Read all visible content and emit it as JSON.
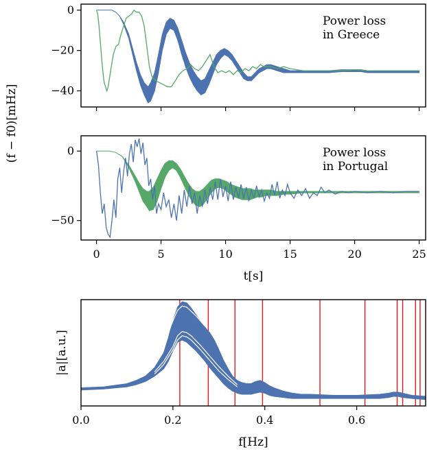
{
  "chart_data": [
    {
      "type": "line",
      "panel": "top",
      "annotation": [
        "Power loss",
        "in Greece"
      ],
      "ylabel": "(f − f0)[mHz]",
      "xlim": [
        -1.2,
        25.5
      ],
      "ylim": [
        -48,
        3
      ],
      "yticks": [
        0,
        -20,
        -40
      ],
      "ytick_labels": [
        "0",
        "−20",
        "−40"
      ],
      "xticks": [
        0,
        5,
        10,
        15,
        20,
        25
      ],
      "colors": {
        "band": "#4c72b0",
        "single": "#55a868"
      },
      "band": {
        "x": [
          0,
          0.5,
          1,
          1.2,
          1.5,
          1.8,
          2.1,
          2.5,
          2.8,
          3.1,
          3.4,
          3.7,
          4.0,
          4.2,
          4.5,
          4.8,
          5.1,
          5.4,
          5.7,
          6.0,
          6.3,
          6.6,
          6.9,
          7.2,
          7.5,
          7.8,
          8.1,
          8.4,
          8.7,
          9.0,
          9.3,
          9.6,
          9.9,
          10.2,
          10.5,
          10.8,
          11.1,
          11.4,
          11.7,
          12.0,
          12.3,
          12.6,
          12.9,
          13.2,
          13.5,
          14.0,
          14.5,
          15.0,
          15.5,
          16.0,
          16.5,
          17.0,
          18.0,
          19.0,
          20.0,
          20.5,
          21.0,
          22.0,
          23.0,
          24.0,
          25.0
        ],
        "upper": [
          0,
          0,
          0,
          0,
          -1,
          -3,
          -6,
          -12,
          -19,
          -26,
          -32,
          -36,
          -38,
          -36,
          -31,
          -22,
          -12,
          -6,
          -4,
          -5,
          -9,
          -15,
          -21,
          -26,
          -30,
          -33,
          -35,
          -34,
          -30,
          -26,
          -22,
          -20,
          -19,
          -20,
          -22,
          -25,
          -28,
          -31,
          -33,
          -33,
          -31,
          -29,
          -28,
          -27,
          -27,
          -28,
          -29,
          -30,
          -30,
          -30,
          -30,
          -30,
          -30,
          -29.5,
          -29.5,
          -29.5,
          -30,
          -30,
          -30,
          -30,
          -30
        ],
        "lower": [
          0,
          0,
          0,
          0,
          -1,
          -3,
          -7,
          -14,
          -22,
          -30,
          -37,
          -42,
          -46,
          -45,
          -40,
          -31,
          -20,
          -12,
          -9,
          -10,
          -15,
          -22,
          -28,
          -33,
          -37,
          -40,
          -42,
          -41,
          -37,
          -32,
          -27,
          -24,
          -22,
          -23,
          -25,
          -28,
          -31,
          -34,
          -35,
          -35,
          -33,
          -31,
          -30,
          -29,
          -29,
          -30,
          -31,
          -31,
          -31,
          -31,
          -31,
          -31,
          -31,
          -30.5,
          -30.5,
          -30.5,
          -31,
          -31,
          -31,
          -31,
          -31
        ]
      },
      "single": {
        "x": [
          0,
          0.1,
          0.2,
          0.3,
          0.4,
          0.5,
          0.6,
          0.7,
          0.8,
          0.9,
          1.0,
          1.1,
          1.2,
          1.3,
          1.4,
          1.5,
          1.7,
          1.9,
          2.1,
          2.3,
          2.5,
          2.7,
          2.9,
          3.1,
          3.3,
          3.5,
          3.7,
          3.9,
          4.1,
          4.3,
          4.6,
          4.9,
          5.2,
          5.5,
          5.8,
          6.1,
          6.4,
          6.7,
          7.0,
          7.3,
          7.6,
          7.9,
          8.2,
          8.5,
          8.8,
          9.1,
          9.4,
          9.7,
          10.0,
          10.3,
          10.6,
          10.9,
          11.2,
          11.5,
          11.8,
          12.1,
          12.4,
          12.7,
          13.0,
          13.5,
          14.0,
          14.5,
          15.0,
          16.0,
          17.0,
          18.0,
          19.0,
          20.0,
          21.0,
          22.0,
          23.0,
          24.0,
          25.0
        ],
        "y": [
          0,
          -2,
          -8,
          -16,
          -24,
          -31,
          -36,
          -38,
          -40,
          -38,
          -34,
          -30,
          -26,
          -22,
          -20,
          -18,
          -17,
          -12,
          -8,
          -4,
          -3,
          -2,
          0,
          -1,
          -1,
          -3,
          -8,
          -18,
          -28,
          -33,
          -35,
          -36,
          -37,
          -38,
          -38,
          -35,
          -32,
          -30,
          -29,
          -27,
          -29,
          -30,
          -28,
          -25,
          -22,
          -28,
          -31,
          -30,
          -31,
          -30,
          -32,
          -30,
          -31,
          -29,
          -30,
          -28,
          -29,
          -27,
          -28,
          -28,
          -29,
          -28,
          -29,
          -30,
          -30,
          -30,
          -30,
          -29.5,
          -30,
          -30,
          -30,
          -30,
          -30
        ]
      }
    },
    {
      "type": "line",
      "panel": "middle",
      "annotation": [
        "Power loss",
        "in Portugal"
      ],
      "xlim": [
        -1.2,
        25.5
      ],
      "ylim": [
        -64,
        11
      ],
      "yticks": [
        0,
        -50
      ],
      "ytick_labels": [
        "0",
        "−50"
      ],
      "xticks": [
        0,
        5,
        10,
        15,
        20,
        25
      ],
      "xtick_labels": [
        "0",
        "5",
        "10",
        "15",
        "20",
        "25"
      ],
      "xlabel": "t[s]",
      "colors": {
        "band": "#55a868",
        "single": "#4c72b0"
      },
      "band": {
        "x": [
          0,
          0.5,
          1,
          1.5,
          2.0,
          2.5,
          3.0,
          3.3,
          3.6,
          3.9,
          4.1,
          4.4,
          4.7,
          5.0,
          5.3,
          5.6,
          5.9,
          6.2,
          6.5,
          6.8,
          7.1,
          7.4,
          7.7,
          8.0,
          8.3,
          8.6,
          8.9,
          9.2,
          9.5,
          9.8,
          10.1,
          10.4,
          10.7,
          11.0,
          11.3,
          11.6,
          11.9,
          12.2,
          12.5,
          12.8,
          13.1,
          13.5,
          14.0,
          14.5,
          15.0,
          16.0,
          17.0,
          18.0,
          19.0,
          20.0,
          21.0,
          22.0,
          23.0,
          24.0,
          25.0
        ],
        "upper": [
          0,
          0,
          0,
          -1,
          -4,
          -10,
          -18,
          -23,
          -27,
          -29,
          -29,
          -26,
          -20,
          -14,
          -9,
          -7,
          -7,
          -9,
          -13,
          -18,
          -23,
          -27,
          -29,
          -29,
          -27,
          -24,
          -21,
          -20,
          -20,
          -21,
          -22,
          -24,
          -25,
          -26,
          -27,
          -27,
          -27,
          -28,
          -28,
          -28,
          -28,
          -28,
          -29,
          -29,
          -29,
          -29,
          -29,
          -29,
          -29,
          -29,
          -29,
          -29,
          -29,
          -29,
          -29
        ],
        "lower": [
          0,
          0,
          0,
          -1,
          -4,
          -12,
          -22,
          -29,
          -36,
          -40,
          -43,
          -42,
          -36,
          -27,
          -19,
          -14,
          -12,
          -14,
          -19,
          -25,
          -31,
          -36,
          -39,
          -40,
          -38,
          -34,
          -30,
          -27,
          -26,
          -27,
          -29,
          -31,
          -33,
          -34,
          -35,
          -35,
          -35,
          -34,
          -33,
          -33,
          -32,
          -32,
          -32,
          -31,
          -31,
          -30,
          -30,
          -30,
          -30,
          -30,
          -30,
          -30,
          -30,
          -30,
          -30
        ]
      },
      "single": {
        "x": [
          0,
          0.15,
          0.3,
          0.45,
          0.6,
          0.75,
          0.9,
          1.05,
          1.2,
          1.35,
          1.5,
          1.65,
          1.8,
          1.95,
          2.1,
          2.25,
          2.4,
          2.55,
          2.7,
          2.85,
          3.0,
          3.15,
          3.3,
          3.45,
          3.6,
          3.75,
          3.9,
          4.05,
          4.2,
          4.35,
          4.5,
          4.65,
          4.8,
          5.0,
          5.2,
          5.4,
          5.6,
          5.8,
          6.0,
          6.2,
          6.4,
          6.6,
          6.8,
          7.0,
          7.2,
          7.4,
          7.6,
          7.8,
          8.0,
          8.2,
          8.4,
          8.6,
          8.8,
          9.0,
          9.2,
          9.4,
          9.6,
          9.8,
          10.0,
          10.2,
          10.4,
          10.6,
          10.8,
          11.0,
          11.2,
          11.4,
          11.6,
          11.8,
          12.0,
          12.2,
          12.4,
          12.6,
          12.8,
          13.0,
          13.2,
          13.4,
          13.6,
          13.8,
          14.0,
          14.2,
          14.4,
          14.6,
          14.8,
          15.0,
          15.3,
          15.6,
          15.9,
          16.2,
          16.5,
          16.8,
          17.1,
          17.4,
          17.7,
          18.0,
          18.5,
          19.0,
          19.5,
          20.0,
          21.0,
          22.0,
          23.0,
          24.0,
          25.0
        ],
        "y": [
          0,
          -10,
          -30,
          -45,
          -38,
          -55,
          -60,
          -62,
          -50,
          -35,
          -48,
          -20,
          -12,
          -30,
          -15,
          -5,
          -18,
          -2,
          5,
          -8,
          8,
          3,
          9,
          -2,
          6,
          -10,
          -5,
          -25,
          -20,
          -35,
          -25,
          -45,
          -38,
          -42,
          -30,
          -40,
          -35,
          -48,
          -38,
          -50,
          -32,
          -45,
          -28,
          -40,
          -25,
          -38,
          -30,
          -45,
          -32,
          -40,
          -28,
          -38,
          -26,
          -35,
          -22,
          -35,
          -20,
          -33,
          -25,
          -36,
          -22,
          -35,
          -26,
          -34,
          -24,
          -34,
          -26,
          -36,
          -28,
          -34,
          -25,
          -33,
          -28,
          -36,
          -30,
          -34,
          -24,
          -32,
          -22,
          -34,
          -28,
          -32,
          -24,
          -30,
          -34,
          -28,
          -32,
          -27,
          -34,
          -30,
          -32,
          -26,
          -30,
          -28,
          -31,
          -29,
          -30,
          -29,
          -30,
          -29,
          -30,
          -29,
          -29
        ]
      }
    },
    {
      "type": "line",
      "panel": "bottom",
      "xlabel": "f[Hz]",
      "ylabel": "|a|[a.u.]",
      "xlim": [
        0.0,
        0.75
      ],
      "ylim": [
        0,
        1.0
      ],
      "xticks": [
        0.0,
        0.2,
        0.4,
        0.6
      ],
      "xtick_labels": [
        "0.0",
        "0.2",
        "0.4",
        "0.6"
      ],
      "colors": {
        "band": "#4c72b0",
        "vlines": "#e31a1c",
        "inner": "#ffffff"
      },
      "vlines": [
        0.215,
        0.277,
        0.335,
        0.395,
        0.52,
        0.618,
        0.688,
        0.7,
        0.728,
        0.738
      ],
      "band": {
        "x": [
          0.0,
          0.05,
          0.1,
          0.12,
          0.14,
          0.16,
          0.18,
          0.19,
          0.2,
          0.21,
          0.22,
          0.23,
          0.24,
          0.25,
          0.26,
          0.27,
          0.28,
          0.29,
          0.3,
          0.31,
          0.32,
          0.33,
          0.34,
          0.35,
          0.36,
          0.37,
          0.38,
          0.39,
          0.4,
          0.41,
          0.42,
          0.44,
          0.46,
          0.48,
          0.5,
          0.55,
          0.6,
          0.65,
          0.67,
          0.68,
          0.69,
          0.7,
          0.72,
          0.75
        ],
        "upper": [
          0.17,
          0.18,
          0.21,
          0.24,
          0.28,
          0.36,
          0.5,
          0.64,
          0.8,
          0.93,
          0.98,
          0.97,
          0.92,
          0.86,
          0.8,
          0.74,
          0.69,
          0.62,
          0.53,
          0.43,
          0.35,
          0.28,
          0.24,
          0.22,
          0.21,
          0.21,
          0.23,
          0.24,
          0.22,
          0.19,
          0.17,
          0.14,
          0.12,
          0.11,
          0.11,
          0.1,
          0.1,
          0.11,
          0.12,
          0.13,
          0.13,
          0.12,
          0.1,
          0.09
        ],
        "lower": [
          0.15,
          0.16,
          0.18,
          0.2,
          0.23,
          0.28,
          0.35,
          0.42,
          0.52,
          0.6,
          0.62,
          0.6,
          0.56,
          0.52,
          0.47,
          0.42,
          0.36,
          0.31,
          0.26,
          0.21,
          0.17,
          0.14,
          0.12,
          0.11,
          0.11,
          0.11,
          0.12,
          0.13,
          0.12,
          0.1,
          0.09,
          0.08,
          0.07,
          0.07,
          0.07,
          0.07,
          0.07,
          0.07,
          0.08,
          0.09,
          0.09,
          0.08,
          0.07,
          0.06
        ]
      },
      "inner_lines": [
        {
          "x": [
            0.16,
            0.18,
            0.2,
            0.21,
            0.22,
            0.23,
            0.24,
            0.26,
            0.28,
            0.3,
            0.32,
            0.34
          ],
          "y": [
            0.32,
            0.42,
            0.56,
            0.66,
            0.7,
            0.69,
            0.66,
            0.57,
            0.47,
            0.37,
            0.28,
            0.2
          ]
        },
        {
          "x": [
            0.16,
            0.18,
            0.2,
            0.21,
            0.22,
            0.23,
            0.24,
            0.26,
            0.28,
            0.3,
            0.32,
            0.34
          ],
          "y": [
            0.3,
            0.39,
            0.53,
            0.62,
            0.66,
            0.65,
            0.62,
            0.53,
            0.43,
            0.33,
            0.25,
            0.18
          ]
        },
        {
          "x": [
            0.18,
            0.2,
            0.21,
            0.22,
            0.23,
            0.25,
            0.27
          ],
          "y": [
            0.58,
            0.8,
            0.9,
            0.94,
            0.93,
            0.85,
            0.75
          ]
        }
      ]
    }
  ]
}
